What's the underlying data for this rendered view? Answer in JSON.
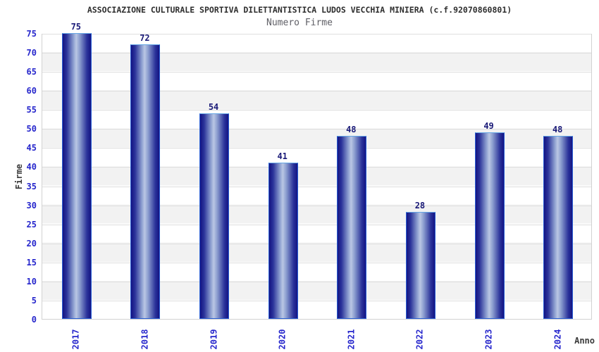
{
  "chart_data": {
    "type": "bar",
    "title": "ASSOCIAZIONE CULTURALE SPORTIVA DILETTANTISTICA LUDOS VECCHIA MINIERA (c.f.92070860801)",
    "subtitle": "Numero Firme",
    "xlabel": "Anno",
    "ylabel": "Firme",
    "categories": [
      "2017",
      "2018",
      "2019",
      "2020",
      "2021",
      "2022",
      "2023",
      "2024"
    ],
    "values": [
      75,
      72,
      54,
      41,
      48,
      28,
      49,
      48
    ],
    "ylim": [
      0,
      75
    ],
    "ytick_step": 5,
    "grid": true,
    "legend": "none",
    "colors": {
      "bar_dark": "#141483",
      "bar_mid": "#2b339a",
      "bar_light": "#bac6e4",
      "bar_border": "#2a5fd4",
      "bar_border_top": "#63a4e4",
      "tick_label": "#2626cc",
      "value_label": "#191977",
      "band_gray": "#f2f2f2",
      "band_white": "#ffffff",
      "gridline": "#dedede",
      "title_color": "#2e2e2e",
      "subtitle_color": "#5f5f66"
    }
  }
}
